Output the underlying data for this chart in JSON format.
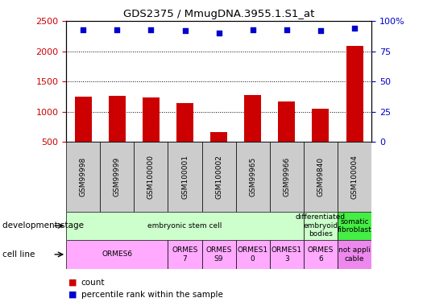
{
  "title": "GDS2375 / MmugDNA.3955.1.S1_at",
  "samples": [
    "GSM99998",
    "GSM99999",
    "GSM100000",
    "GSM100001",
    "GSM100002",
    "GSM99965",
    "GSM99966",
    "GSM99840",
    "GSM100004"
  ],
  "counts": [
    1255,
    1270,
    1240,
    1150,
    660,
    1280,
    1165,
    1055,
    2090
  ],
  "percentiles": [
    93,
    93,
    93,
    92,
    90,
    93,
    93,
    92,
    94
  ],
  "ylim_left": [
    500,
    2500
  ],
  "ylim_right": [
    0,
    100
  ],
  "yticks_left": [
    500,
    1000,
    1500,
    2000,
    2500
  ],
  "yticks_right": [
    0,
    25,
    50,
    75,
    100
  ],
  "bar_color": "#cc0000",
  "dot_color": "#0000cc",
  "dev_stage_cells": [
    {
      "span": [
        0,
        7
      ],
      "text": "embryonic stem cell",
      "color": "#ccffcc"
    },
    {
      "span": [
        7,
        8
      ],
      "text": "differentiated\nembryoid\nbodies",
      "color": "#ccffcc"
    },
    {
      "span": [
        8,
        9
      ],
      "text": "somatic\nfibroblast",
      "color": "#44ee44"
    }
  ],
  "cell_line_cells": [
    {
      "span": [
        0,
        3
      ],
      "text": "ORMES6",
      "color": "#ffaaff"
    },
    {
      "span": [
        3,
        4
      ],
      "text": "ORMES\n7",
      "color": "#ffaaff"
    },
    {
      "span": [
        4,
        5
      ],
      "text": "ORMES\nS9",
      "color": "#ffaaff"
    },
    {
      "span": [
        5,
        6
      ],
      "text": "ORMES1\n0",
      "color": "#ffaaff"
    },
    {
      "span": [
        6,
        7
      ],
      "text": "ORMES1\n3",
      "color": "#ffaaff"
    },
    {
      "span": [
        7,
        8
      ],
      "text": "ORMES\n6",
      "color": "#ffaaff"
    },
    {
      "span": [
        8,
        9
      ],
      "text": "not appli\ncable",
      "color": "#ee88ee"
    }
  ],
  "sample_box_color": "#cccccc",
  "tick_color_left": "#cc0000",
  "tick_color_right": "#0000cc"
}
